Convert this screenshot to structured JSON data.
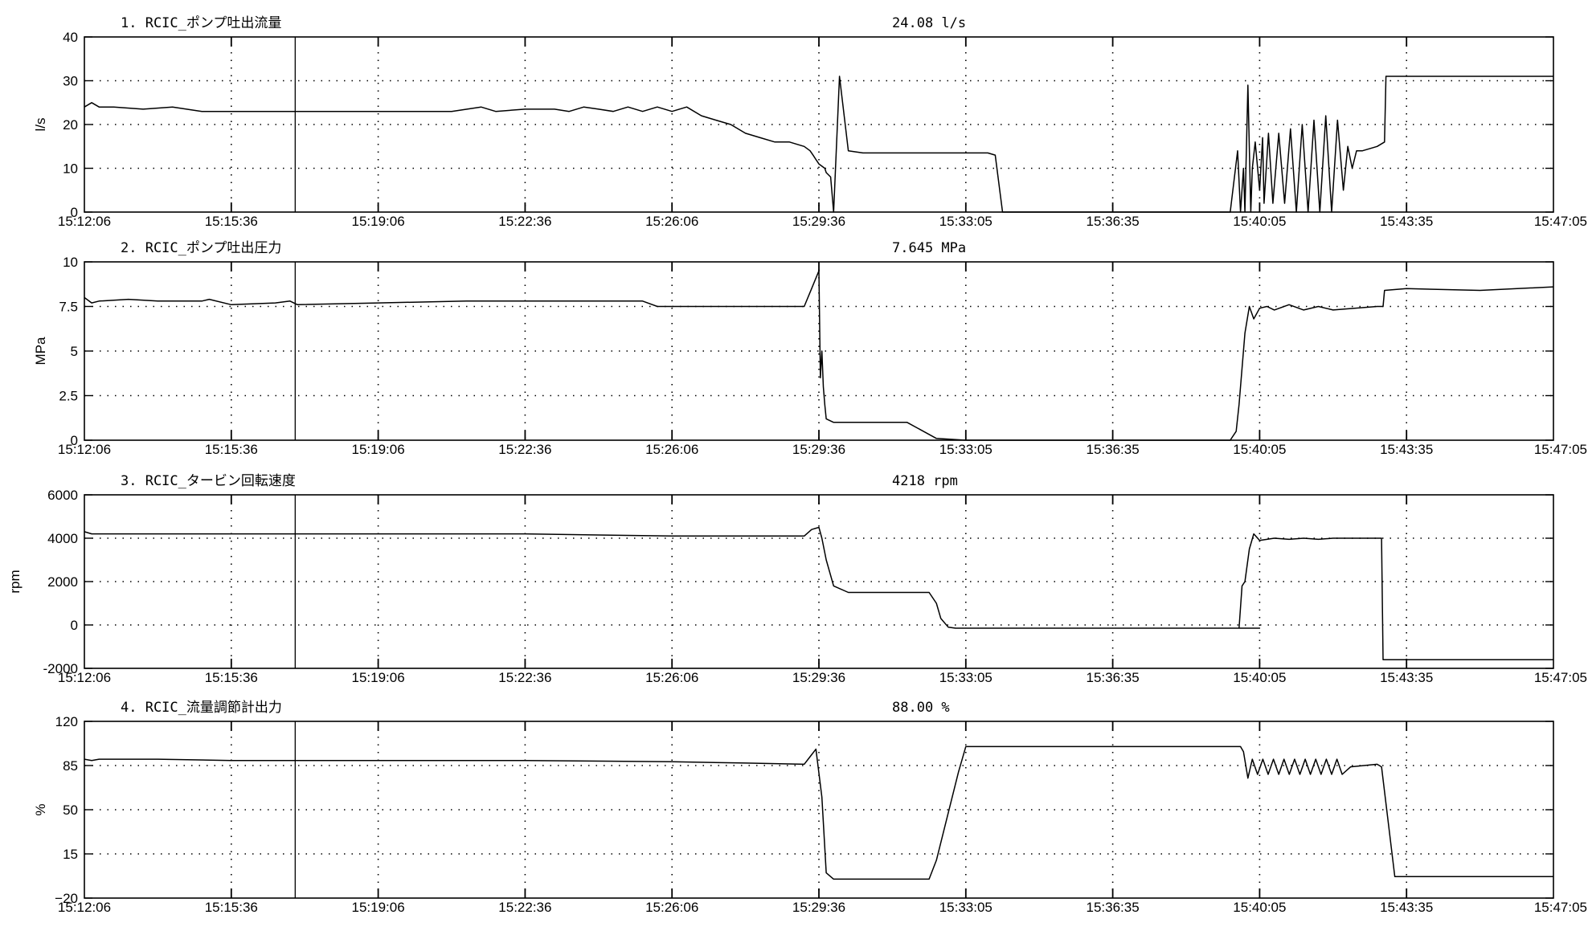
{
  "chart_data": [
    {
      "type": "line",
      "title": "1.  RCIC_ポンプ吐出流量",
      "readout": "24.08 l/s",
      "ylabel": "l/s",
      "ylim": [
        0,
        40
      ],
      "yticks": [
        0,
        10,
        20,
        30,
        40
      ],
      "ytick_labels": [
        "0",
        "10",
        "20",
        "30",
        "40"
      ],
      "xlim": [
        "15:12:06",
        "15:47:05"
      ],
      "xtick_labels": [
        "15:12:06",
        "15:15:36",
        "15:19:06",
        "15:22:36",
        "15:26:06",
        "15:29:36",
        "15:33:05",
        "15:36:35",
        "15:40:05",
        "15:43:35",
        "15:47:05"
      ],
      "grid": true,
      "series": [
        {
          "x": [
            0.0,
            0.005,
            0.01,
            0.02,
            0.04,
            0.06,
            0.08,
            0.1,
            0.15,
            0.2,
            0.25,
            0.27,
            0.28,
            0.3,
            0.32,
            0.33,
            0.34,
            0.35,
            0.36,
            0.37,
            0.38,
            0.39,
            0.4,
            0.41,
            0.42,
            0.43,
            0.44,
            0.45,
            0.46,
            0.47,
            0.48,
            0.49,
            0.494,
            0.496,
            0.498,
            0.5,
            0.504,
            0.505,
            0.508,
            0.51,
            0.514,
            0.52,
            0.53,
            0.54,
            0.56,
            0.58,
            0.6,
            0.615,
            0.62,
            0.625,
            0.63,
            0.65,
            0.7,
            0.75,
            0.78,
            0.785,
            0.787,
            0.789,
            0.79,
            0.792,
            0.794,
            0.795,
            0.797,
            0.8,
            0.802,
            0.803,
            0.806,
            0.809,
            0.813,
            0.817,
            0.821,
            0.825,
            0.829,
            0.833,
            0.837,
            0.841,
            0.845,
            0.849,
            0.853,
            0.857,
            0.86,
            0.863,
            0.866,
            0.87,
            0.88,
            0.885,
            0.886,
            0.89,
            0.9,
            0.95,
            1.0
          ],
          "y": [
            24,
            25,
            24,
            24,
            23.5,
            24,
            23,
            23,
            23,
            23,
            23,
            24,
            23,
            23.5,
            23.5,
            23,
            24,
            23.5,
            23,
            24,
            23,
            24,
            23,
            24,
            22,
            21,
            20,
            18,
            17,
            16,
            16,
            15,
            14,
            13,
            12,
            11,
            10,
            9,
            8,
            0,
            31,
            14,
            13.5,
            13.5,
            13.5,
            13.5,
            13.5,
            13.5,
            13,
            0,
            0,
            0,
            0,
            0,
            0,
            14,
            0,
            10,
            0,
            29,
            0,
            10,
            16,
            5,
            17,
            2,
            18,
            2,
            18,
            2,
            19,
            0,
            20,
            0,
            21,
            0,
            22,
            0,
            21,
            5,
            15,
            10,
            14,
            14,
            15,
            16,
            31,
            31,
            31,
            31,
            31
          ]
        }
      ]
    },
    {
      "type": "line",
      "title": "2.  RCIC_ポンプ吐出圧力",
      "readout": "7.645 MPa",
      "ylabel": "MPa",
      "ylim": [
        0,
        10
      ],
      "yticks": [
        0,
        2.5,
        5,
        7.5,
        10
      ],
      "ytick_labels": [
        "0",
        "2.5",
        "5",
        "7.5",
        "10"
      ],
      "xlim": [
        "15:12:06",
        "15:47:05"
      ],
      "xtick_labels": [
        "15:12:06",
        "15:15:36",
        "15:19:06",
        "15:22:36",
        "15:26:06",
        "15:29:36",
        "15:33:05",
        "15:36:35",
        "15:40:05",
        "15:43:35",
        "15:47:05"
      ],
      "grid": true,
      "series": [
        {
          "x": [
            0.0,
            0.005,
            0.01,
            0.03,
            0.05,
            0.08,
            0.085,
            0.1,
            0.13,
            0.14,
            0.145,
            0.2,
            0.26,
            0.27,
            0.3,
            0.35,
            0.38,
            0.39,
            0.4,
            0.45,
            0.48,
            0.49,
            0.495,
            0.5,
            0.501,
            0.502,
            0.503,
            0.504,
            0.505,
            0.51,
            0.52,
            0.54,
            0.55,
            0.56,
            0.58,
            0.6,
            0.7,
            0.78,
            0.784,
            0.786,
            0.79,
            0.793,
            0.796,
            0.8,
            0.805,
            0.81,
            0.82,
            0.83,
            0.84,
            0.85,
            0.88,
            0.884,
            0.885,
            0.9,
            0.95,
            1.0
          ],
          "y": [
            8,
            7.7,
            7.8,
            7.9,
            7.8,
            7.8,
            7.9,
            7.6,
            7.7,
            7.8,
            7.6,
            7.7,
            7.8,
            7.8,
            7.8,
            7.8,
            7.8,
            7.5,
            7.5,
            7.5,
            7.5,
            7.5,
            8.5,
            9.5,
            3.5,
            5,
            3,
            2,
            1.2,
            1,
            1,
            1,
            1,
            1,
            0.1,
            0,
            0,
            0,
            0.5,
            2,
            6,
            7.5,
            6.8,
            7.4,
            7.5,
            7.3,
            7.6,
            7.3,
            7.5,
            7.3,
            7.5,
            7.5,
            8.4,
            8.5,
            8.4,
            8.6
          ]
        }
      ]
    },
    {
      "type": "line",
      "title": "3.  RCIC_タービン回転速度",
      "readout": "4218 rpm",
      "ylabel": "rpm",
      "ylim": [
        -2000,
        6000
      ],
      "yticks": [
        -2000,
        0,
        2000,
        4000,
        6000
      ],
      "ytick_labels": [
        "-2000",
        "0",
        "2000",
        "4000",
        "6000"
      ],
      "xlim": [
        "15:12:06",
        "15:47:05"
      ],
      "xtick_labels": [
        "15:12:06",
        "15:15:36",
        "15:19:06",
        "15:22:36",
        "15:26:06",
        "15:29:36",
        "15:33:05",
        "15:36:35",
        "15:40:05",
        "15:43:35",
        "15:47:05"
      ],
      "grid": true,
      "series": [
        {
          "x": [
            0.0,
            0.005,
            0.1,
            0.2,
            0.3,
            0.35,
            0.4,
            0.45,
            0.48,
            0.49,
            0.495,
            0.5,
            0.502,
            0.505,
            0.51,
            0.52,
            0.55,
            0.575,
            0.58,
            0.583,
            0.588,
            0.593,
            0.6,
            0.7,
            0.8,
            0.786,
            0.788,
            0.79,
            0.793,
            0.796,
            0.8,
            0.81,
            0.82,
            0.83,
            0.84,
            0.85,
            0.88,
            0.883,
            0.884,
            0.9,
            1.0
          ],
          "y": [
            4300,
            4200,
            4200,
            4200,
            4200,
            4150,
            4100,
            4100,
            4100,
            4100,
            4400,
            4500,
            4000,
            3000,
            1800,
            1500,
            1500,
            1500,
            1000,
            300,
            -100,
            -150,
            -150,
            -150,
            -150,
            -150,
            1800,
            2000,
            3500,
            4200,
            3900,
            4000,
            3950,
            4000,
            3950,
            4000,
            4000,
            4000,
            -1600,
            -1600,
            -1600
          ]
        }
      ]
    },
    {
      "type": "line",
      "title": "4.  RCIC_流量調節計出力",
      "readout": "88.00 %",
      "ylabel": "%",
      "ylim": [
        -20,
        120
      ],
      "yticks": [
        -20,
        15,
        50,
        85,
        120
      ],
      "ytick_labels": [
        "−20",
        "15",
        "50",
        "85",
        "120"
      ],
      "xlim": [
        "15:12:06",
        "15:47:05"
      ],
      "xtick_labels": [
        "15:12:06",
        "15:15:36",
        "15:19:06",
        "15:22:36",
        "15:26:06",
        "15:29:36",
        "15:33:05",
        "15:36:35",
        "15:40:05",
        "15:43:35",
        "15:47:05"
      ],
      "grid": true,
      "series": [
        {
          "x": [
            0.0,
            0.005,
            0.01,
            0.05,
            0.1,
            0.2,
            0.3,
            0.4,
            0.45,
            0.49,
            0.494,
            0.498,
            0.502,
            0.505,
            0.51,
            0.52,
            0.55,
            0.575,
            0.58,
            0.595,
            0.6,
            0.65,
            0.7,
            0.75,
            0.8,
            0.8,
            0.8,
            0.8,
            0.8,
            0.8,
            0.8,
            0.8,
            0.8,
            0.8,
            0.8,
            0.8,
            0.8,
            0.8,
            0.8,
            0.8,
            0.8,
            0.8,
            0.8,
            0.8,
            0.8,
            0.8,
            0.8,
            0.8,
            0.8,
            0.8,
            0.8,
            0.8,
            0.8,
            0.8
          ],
          "y": [
            90,
            89,
            90,
            90,
            89,
            89,
            89,
            88,
            87,
            86,
            92,
            98,
            60,
            0,
            -5,
            -5,
            -5,
            -5,
            10,
            80,
            100,
            100,
            100,
            100,
            100,
            100,
            100,
            100,
            100,
            100,
            100,
            100,
            100,
            100,
            100,
            100,
            100,
            100,
            100,
            100,
            100,
            100,
            100,
            100,
            100,
            100,
            100,
            100,
            100,
            100,
            100,
            100,
            100,
            100
          ]
        }
      ]
    }
  ]
}
